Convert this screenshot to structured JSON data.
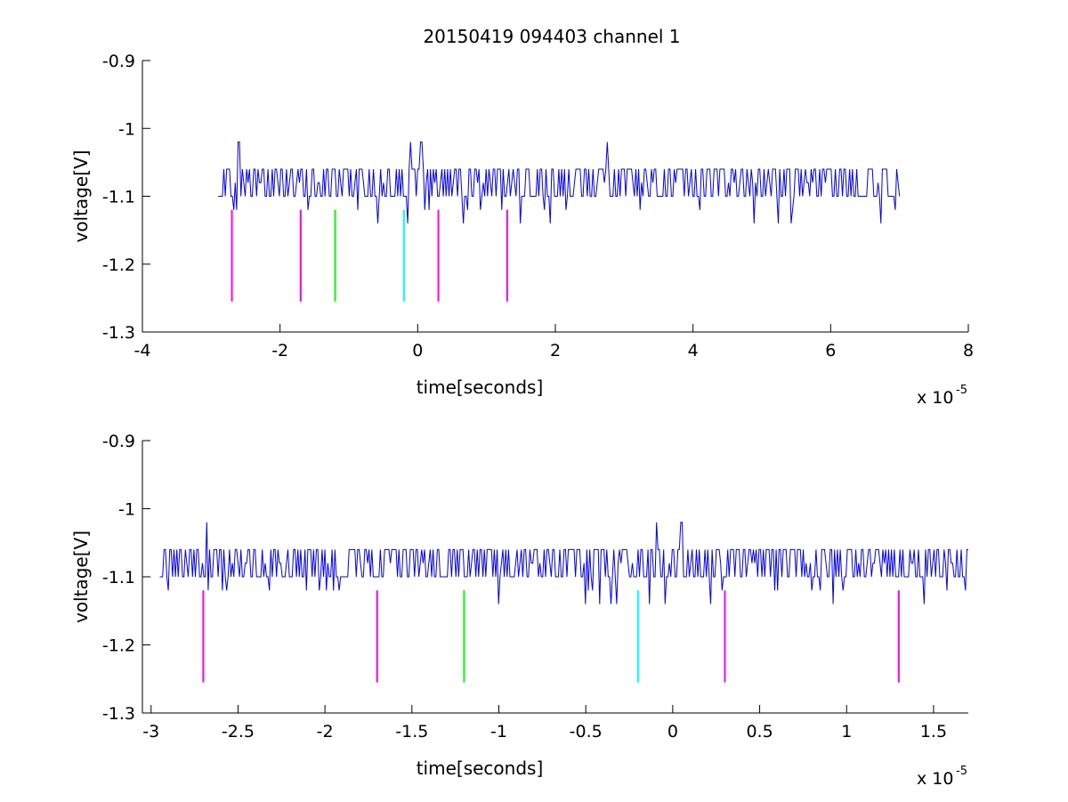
{
  "figure_title": "20150419 094403 channel 1",
  "chart_data": [
    {
      "type": "line",
      "title": "20150419 094403 channel 1",
      "xlabel": "time[seconds]",
      "ylabel": "voltage[V]",
      "x_exponent_label": "x 10",
      "x_exponent_power": "-5",
      "xlim": [
        -4,
        8
      ],
      "ylim": [
        -1.3,
        -0.9
      ],
      "xticks": [
        -4,
        -2,
        0,
        2,
        4,
        6,
        8
      ],
      "xtick_labels": [
        "-4",
        "-2",
        "0",
        "2",
        "4",
        "6",
        "8"
      ],
      "yticks": [
        -0.9,
        -1.0,
        -1.1,
        -1.2,
        -1.3
      ],
      "ytick_labels": [
        "-0.9",
        "-1",
        "-1.1",
        "-1.2",
        "-1.3"
      ],
      "grid": false,
      "signal": {
        "color": "#0000ff",
        "x_start": -2.9,
        "x_end": 7.0,
        "levels": [
          -1.14,
          -1.12,
          -1.1,
          -1.08,
          -1.06,
          -1.02
        ],
        "baseline": -1.1,
        "spikes": [
          {
            "x": -2.6,
            "y": -1.02
          },
          {
            "x": -0.1,
            "y": -1.02
          },
          {
            "x": 0.05,
            "y": -1.02
          },
          {
            "x": 2.75,
            "y": -1.02
          }
        ]
      },
      "markers": [
        {
          "x": -2.7,
          "color": "#ff00ff",
          "y_top": -1.12,
          "y_bottom": -1.255
        },
        {
          "x": -1.7,
          "color": "#ff00ff",
          "y_top": -1.12,
          "y_bottom": -1.255
        },
        {
          "x": -1.2,
          "color": "#00ff00",
          "y_top": -1.12,
          "y_bottom": -1.255
        },
        {
          "x": -0.2,
          "color": "#00ffff",
          "y_top": -1.12,
          "y_bottom": -1.255
        },
        {
          "x": 0.3,
          "color": "#ff00ff",
          "y_top": -1.12,
          "y_bottom": -1.255
        },
        {
          "x": 1.3,
          "color": "#ff00ff",
          "y_top": -1.12,
          "y_bottom": -1.255
        }
      ]
    },
    {
      "type": "line",
      "title": "",
      "xlabel": "time[seconds]",
      "ylabel": "voltage[V]",
      "x_exponent_label": "x 10",
      "x_exponent_power": "-5",
      "xlim": [
        -3.05,
        1.7
      ],
      "ylim": [
        -1.3,
        -0.9
      ],
      "xticks": [
        -3,
        -2.5,
        -2,
        -1.5,
        -1,
        -0.5,
        0,
        0.5,
        1,
        1.5
      ],
      "xtick_labels": [
        "-3",
        "-2.5",
        "-2",
        "-1.5",
        "-1",
        "-0.5",
        "0",
        "0.5",
        "1",
        "1.5"
      ],
      "yticks": [
        -0.9,
        -1.0,
        -1.1,
        -1.2,
        -1.3
      ],
      "ytick_labels": [
        "-0.9",
        "-1",
        "-1.1",
        "-1.2",
        "-1.3"
      ],
      "grid": false,
      "signal": {
        "color": "#0000ff",
        "x_start": -2.95,
        "x_end": 1.7,
        "levels": [
          -1.14,
          -1.12,
          -1.1,
          -1.08,
          -1.06,
          -1.02
        ],
        "baseline": -1.1,
        "spikes": [
          {
            "x": -2.68,
            "y": -1.02
          },
          {
            "x": -0.09,
            "y": -1.02
          },
          {
            "x": 0.05,
            "y": -1.02
          }
        ]
      },
      "markers": [
        {
          "x": -2.7,
          "color": "#ff00ff",
          "y_top": -1.12,
          "y_bottom": -1.255
        },
        {
          "x": -1.7,
          "color": "#ff00ff",
          "y_top": -1.12,
          "y_bottom": -1.255
        },
        {
          "x": -1.2,
          "color": "#00ff00",
          "y_top": -1.12,
          "y_bottom": -1.255
        },
        {
          "x": -0.2,
          "color": "#00ffff",
          "y_top": -1.12,
          "y_bottom": -1.255
        },
        {
          "x": 0.3,
          "color": "#ff00ff",
          "y_top": -1.12,
          "y_bottom": -1.255
        },
        {
          "x": 1.3,
          "color": "#ff00ff",
          "y_top": -1.12,
          "y_bottom": -1.255
        }
      ]
    }
  ]
}
